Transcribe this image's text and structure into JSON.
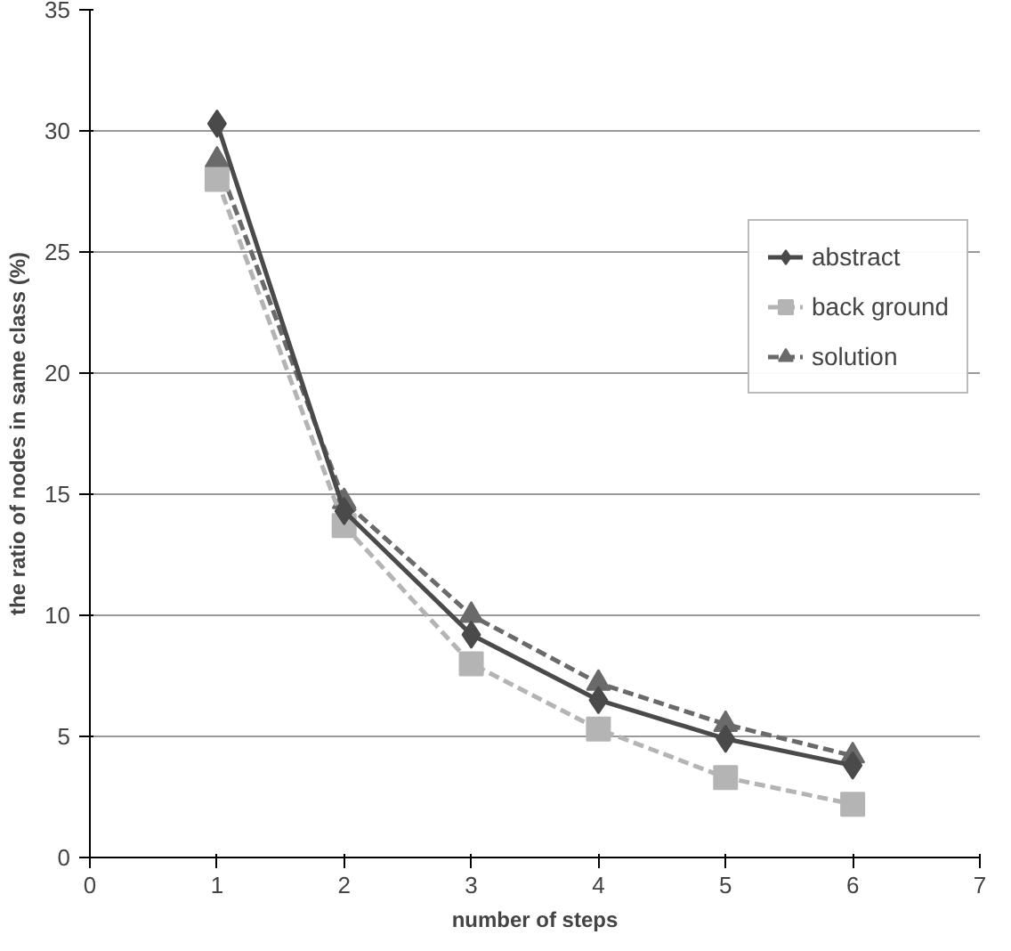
{
  "chart_data": {
    "type": "line",
    "xlabel": "number of steps",
    "ylabel": "the ratio of nodes in same class (%)",
    "x": [
      1,
      2,
      3,
      4,
      5,
      6
    ],
    "xlim": [
      0,
      7
    ],
    "xticks": [
      0,
      1,
      2,
      3,
      4,
      5,
      6,
      7
    ],
    "ylim": [
      0,
      35
    ],
    "yticks": [
      0,
      5,
      10,
      15,
      20,
      25,
      30,
      35
    ],
    "grid": "y",
    "legend": "right",
    "series": [
      {
        "name": "abstract",
        "color": "#4a4a4a",
        "marker": "diamond",
        "line_style": "solid",
        "values": [
          30.3,
          14.3,
          9.2,
          6.5,
          4.9,
          3.8
        ]
      },
      {
        "name": "back ground",
        "color": "#b4b4b4",
        "marker": "square",
        "line_style": "dashed",
        "values": [
          28.0,
          13.7,
          8.0,
          5.3,
          3.3,
          2.2
        ]
      },
      {
        "name": "solution",
        "color": "#6a6a6a",
        "marker": "triangle",
        "line_style": "dashed",
        "values": [
          28.8,
          14.7,
          10.0,
          7.2,
          5.5,
          4.2
        ]
      }
    ]
  }
}
